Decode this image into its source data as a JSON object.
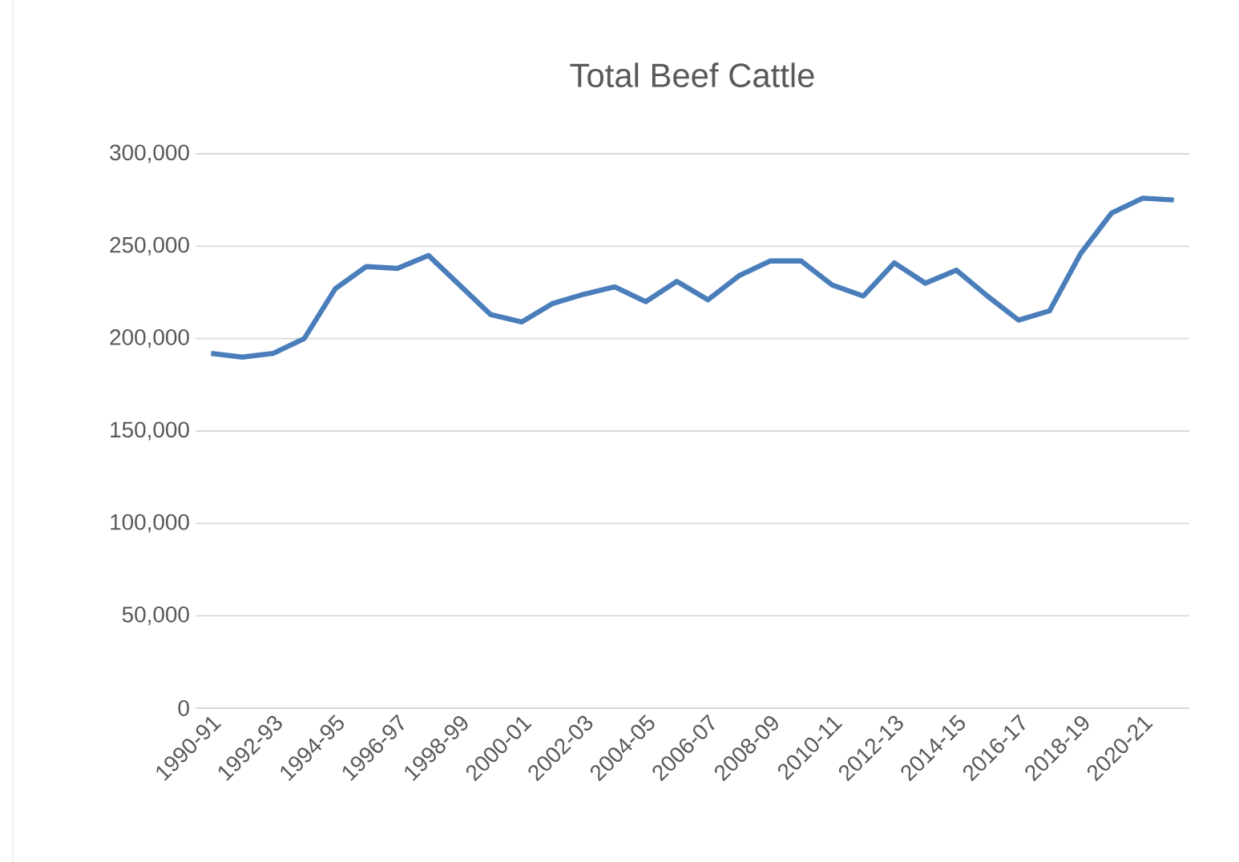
{
  "chart_data": {
    "type": "line",
    "title": "Total Beef Cattle",
    "categories": [
      "1990-91",
      null,
      "1992-93",
      null,
      "1994-95",
      null,
      "1996-97",
      null,
      "1998-99",
      null,
      "2000-01",
      null,
      "2002-03",
      null,
      "2004-05",
      null,
      "2006-07",
      null,
      "2008-09",
      null,
      "2010-11",
      null,
      "2012-13",
      null,
      "2014-15",
      null,
      "2016-17",
      null,
      "2018-19",
      null,
      "2020-21",
      null
    ],
    "series": [
      {
        "color": "#4a7ebb",
        "values": [
          192000,
          190000,
          192000,
          200000,
          227000,
          239000,
          238000,
          245000,
          229000,
          213000,
          209000,
          219000,
          224000,
          228000,
          220000,
          231000,
          221000,
          234000,
          242000,
          242000,
          229000,
          223000,
          241000,
          230000,
          237000,
          223000,
          210000,
          215000,
          246000,
          268000,
          276000,
          275000
        ]
      }
    ],
    "ylim": [
      0,
      300000
    ],
    "yticks": [
      {
        "value": 0,
        "label": "0"
      },
      {
        "value": 50000,
        "label": "50,000"
      },
      {
        "value": 100000,
        "label": "100,000"
      },
      {
        "value": 150000,
        "label": "150,000"
      },
      {
        "value": 200000,
        "label": "200,000"
      },
      {
        "value": 250000,
        "label": "250,000"
      },
      {
        "value": 300000,
        "label": "300,000"
      }
    ],
    "grid": "y",
    "marker": "none",
    "line_style": "solid"
  }
}
